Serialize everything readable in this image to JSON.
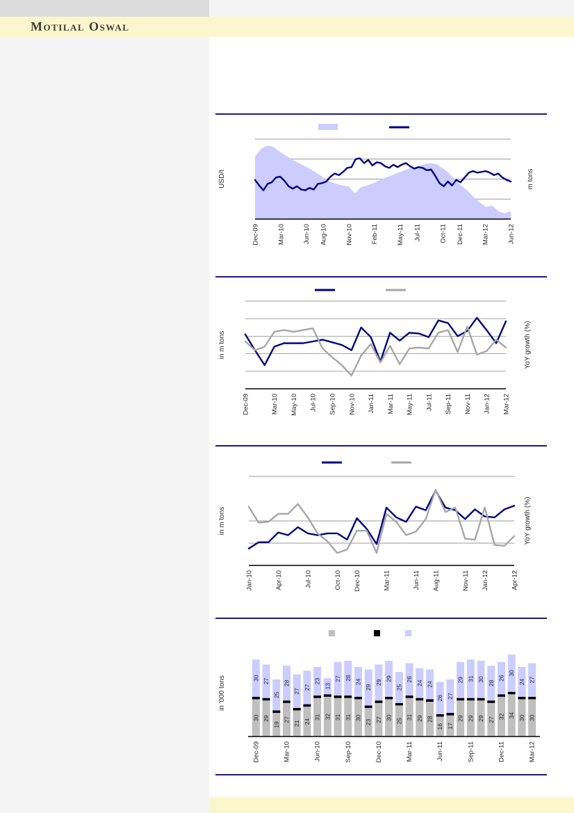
{
  "header": {
    "brand": "Motilal Oswal",
    "band_color": "#FCF6CD"
  },
  "palette": {
    "navy": "#000080",
    "lavender": "#CCCCFF",
    "gray_line": "#A6A6A6",
    "bar_gray": "#BFBFBF",
    "bar_black": "#000000",
    "gridline": "#999999",
    "axis": "#000000",
    "separator_rule": "#1C1C77",
    "tick_text": "#262626"
  },
  "note": "Chart titles, legend text labels and y-axis tick values are not visible (blank) in the source image; series values are estimated normalized 0-100 of plot height.",
  "chart_data": [
    {
      "type": "area",
      "subtype": "area with overlaid line",
      "title": "",
      "ylabel_left": "USD/t",
      "ylabel_right": "m tons",
      "y_tick_labels": [],
      "values_scale": "normalized 0-100 of plot height (no y tick labels shown)",
      "x_range": "Dec-09 to Jun-12",
      "x_tick_labels": [
        "Dec-09",
        "Mar-10",
        "Jun-10",
        "Aug-10",
        "Nov-10",
        "Feb-11",
        "May-11",
        "Jul-11",
        "Oct-11",
        "Dec-11",
        "Mar-12",
        "Jun-12"
      ],
      "gridline_levels": [
        100,
        75,
        50,
        25
      ],
      "legend_position": "top",
      "legend": [
        {
          "label": "",
          "swatch": "area",
          "color": "#CCCCFF"
        },
        {
          "label": "",
          "swatch": "line",
          "color": "#000080"
        }
      ],
      "series": [
        {
          "name": "inventory-area",
          "style": "area",
          "color": "#CCCCFF",
          "values": [
            78,
            88,
            92,
            90,
            84,
            79,
            74,
            70,
            66,
            62,
            57,
            52,
            47,
            44,
            42,
            41,
            32,
            40,
            42,
            45,
            49,
            52,
            55,
            58,
            61,
            64,
            66,
            68,
            70,
            69,
            64,
            58,
            50,
            42,
            36,
            28,
            21,
            15,
            17,
            10,
            7,
            10
          ]
        },
        {
          "name": "price-line",
          "style": "line",
          "color": "#000080",
          "values": [
            49,
            42,
            36,
            44,
            46,
            52,
            53,
            48,
            41,
            38,
            41,
            37,
            36,
            39,
            37,
            44,
            45,
            47,
            53,
            57,
            55,
            59,
            64,
            65,
            75,
            76,
            70,
            74,
            67,
            71,
            70,
            66,
            64,
            68,
            65,
            68,
            70,
            66,
            63,
            65,
            64,
            61,
            62,
            54,
            45,
            41,
            47,
            42,
            49,
            46,
            52,
            58,
            60,
            58,
            59,
            60,
            58,
            55,
            57,
            52,
            49,
            47
          ]
        }
      ]
    },
    {
      "type": "line",
      "title": "",
      "ylabel_left": "in m tons",
      "ylabel_right": "YoY growth (%)",
      "y_tick_labels": [],
      "values_scale": "normalized 0-100 of plot height (no y tick labels shown)",
      "n_points": 28,
      "x_start": "Dec-09",
      "x_end": "Mar-12",
      "x_frequency": "monthly",
      "x_tick_labels": [
        "Dec-09",
        "Mar-10",
        "May-10",
        "Jul-10",
        "Sep-10",
        "Nov-10",
        "Jan-11",
        "Mar-11",
        "May-11",
        "Jul-11",
        "Sep-11",
        "Nov-11",
        "Jan-12",
        "Mar-12"
      ],
      "x_tick_indices": [
        0,
        3,
        5,
        7,
        9,
        11,
        13,
        15,
        17,
        19,
        21,
        23,
        25,
        27
      ],
      "gridline_levels": [
        100,
        80,
        60,
        40,
        20
      ],
      "legend_position": "top",
      "legend": [
        {
          "label": "",
          "swatch": "line",
          "color": "#000080"
        },
        {
          "label": "",
          "swatch": "line",
          "color": "#A6A6A6"
        }
      ],
      "series": [
        {
          "name": "navy-series",
          "style": "line",
          "color": "#000080",
          "values": [
            62,
            44,
            27,
            48,
            52,
            52,
            52,
            54,
            56,
            53,
            50,
            44,
            70,
            59,
            31,
            64,
            55,
            64,
            63,
            59,
            78,
            75,
            60,
            66,
            81,
            67,
            52,
            77
          ]
        },
        {
          "name": "gray-series",
          "style": "line",
          "color": "#A6A6A6",
          "values": [
            54,
            44,
            48,
            65,
            67,
            65,
            67,
            69,
            46,
            36,
            27,
            15,
            38,
            51,
            30,
            49,
            28,
            46,
            47,
            46,
            64,
            67,
            42,
            71,
            39,
            43,
            56,
            47
          ]
        }
      ]
    },
    {
      "type": "line",
      "title": "",
      "ylabel_left": "in m tons",
      "ylabel_right": "YoY growth (%)",
      "y_tick_labels": [],
      "values_scale": "normalized 0-100 of plot height (no y tick labels shown)",
      "n_points": 28,
      "x_start": "Jan-10",
      "x_end": "Apr-12",
      "x_frequency": "monthly",
      "x_tick_labels": [
        "Jan-10",
        "Apr-10",
        "Jul-10",
        "Oct-10",
        "Dec-10",
        "Mar-11",
        "Jun-11",
        "Aug-11",
        "Nov-11",
        "Jan-12",
        "Apr-12"
      ],
      "x_tick_indices": [
        0,
        3,
        6,
        9,
        11,
        14,
        17,
        19,
        22,
        24,
        27
      ],
      "gridline_levels": [
        100,
        50,
        25
      ],
      "legend_position": "top",
      "legend": [
        {
          "label": "",
          "swatch": "line",
          "color": "#000080"
        },
        {
          "label": "",
          "swatch": "line",
          "color": "#A6A6A6"
        }
      ],
      "series": [
        {
          "name": "navy-series",
          "style": "line",
          "color": "#000080",
          "values": [
            19,
            26,
            26,
            37,
            34,
            43,
            36,
            34,
            36,
            36,
            29,
            53,
            41,
            24,
            65,
            54,
            49,
            66,
            62,
            84,
            65,
            62,
            52,
            63,
            55,
            54,
            63,
            67
          ]
        },
        {
          "name": "gray-series",
          "style": "line",
          "color": "#A6A6A6",
          "values": [
            66,
            48,
            49,
            58,
            58,
            69,
            54,
            36,
            27,
            14,
            18,
            39,
            39,
            14,
            58,
            49,
            34,
            38,
            52,
            85,
            60,
            65,
            30,
            29,
            65,
            23,
            22,
            33
          ]
        }
      ]
    },
    {
      "type": "bar",
      "subtype": "stacked",
      "title": "",
      "ylabel_left": "in '000 tons",
      "y_tick_labels": [],
      "unit": "'000 tons",
      "n_bars": 28,
      "x_start": "Dec-09",
      "x_end": "Mar-12",
      "x_frequency": "monthly",
      "x_tick_labels": [
        "Dec-09",
        "Mar-10",
        "Jun-10",
        "Sep-10",
        "Dec-10",
        "Mar-11",
        "Jun-11",
        "Sep-11",
        "Dec-11",
        "Mar-12"
      ],
      "x_tick_indices": [
        0,
        3,
        6,
        9,
        12,
        15,
        18,
        21,
        24,
        27
      ],
      "legend_position": "top",
      "legend": [
        {
          "label": "",
          "swatch": "square",
          "color": "#BFBFBF"
        },
        {
          "label": "",
          "swatch": "square",
          "color": "#000000"
        },
        {
          "label": "",
          "swatch": "square",
          "color": "#CCCCFF"
        }
      ],
      "series": [
        {
          "name": "bottom-gray-segment",
          "color": "#BFBFBF",
          "labels_shown": true,
          "values": [
            30,
            29,
            19,
            27,
            21,
            24,
            31,
            32,
            31,
            31,
            30,
            23,
            27,
            30,
            25,
            31,
            29,
            28,
            16,
            17,
            29,
            29,
            29,
            27,
            32,
            34,
            30,
            30
          ]
        },
        {
          "name": "middle-black-segment",
          "color": "#000000",
          "labels_shown": false,
          "value_each_estimated": 2
        },
        {
          "name": "top-lavender-segment",
          "color": "#CCCCFF",
          "labels_shown": true,
          "values": [
            30,
            27,
            25,
            28,
            27,
            27,
            23,
            13,
            27,
            28,
            24,
            29,
            29,
            29,
            25,
            26,
            24,
            24,
            26,
            27,
            29,
            31,
            30,
            28,
            26,
            30,
            24,
            27
          ]
        }
      ]
    }
  ]
}
